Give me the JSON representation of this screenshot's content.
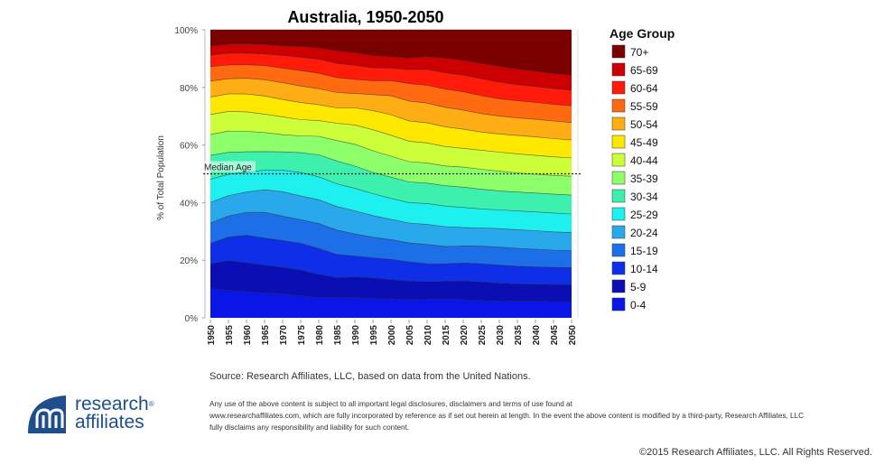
{
  "chart_data": {
    "type": "area",
    "stacked": true,
    "normalized_percent": true,
    "title": "Australia, 1950-2050",
    "ylabel": "% of Total Population",
    "xlabel": "",
    "ylim": [
      0,
      100
    ],
    "y_ticks": [
      "0%",
      "20%",
      "40%",
      "60%",
      "80%",
      "100%"
    ],
    "y_tick_values": [
      0,
      20,
      40,
      60,
      80,
      100
    ],
    "x": [
      "1950",
      "1955",
      "1960",
      "1965",
      "1970",
      "1975",
      "1980",
      "1985",
      "1990",
      "1995",
      "2000",
      "2005",
      "2010",
      "2015",
      "2020",
      "2025",
      "2030",
      "2035",
      "2040",
      "2045",
      "2050"
    ],
    "legend_title": "Age Group",
    "legend_position": "right",
    "annotation": {
      "label": "Median Age",
      "value": 50,
      "style": "dotted horizontal line"
    },
    "series": [
      {
        "name": "0-4",
        "color": "#0a16e6",
        "values": [
          10.2,
          9.8,
          9.5,
          9.2,
          8.8,
          8.0,
          7.2,
          7.1,
          7.0,
          6.7,
          6.4,
          6.3,
          6.4,
          6.5,
          6.3,
          6.0,
          5.8,
          5.7,
          5.7,
          5.6,
          5.6
        ]
      },
      {
        "name": "5-9",
        "color": "#0b0fb3",
        "values": [
          8.6,
          10.6,
          10.5,
          10.2,
          9.8,
          9.3,
          8.3,
          7.0,
          7.2,
          7.1,
          6.7,
          6.3,
          6.0,
          6.1,
          6.4,
          6.4,
          6.2,
          6.0,
          5.9,
          5.9,
          5.8
        ]
      },
      {
        "name": "10-14",
        "color": "#0f2ee8",
        "values": [
          7.0,
          8.5,
          10.0,
          10.0,
          9.9,
          9.7,
          9.2,
          8.2,
          7.2,
          7.0,
          7.0,
          6.6,
          6.2,
          6.0,
          6.2,
          6.3,
          6.3,
          6.1,
          6.0,
          5.9,
          5.9
        ]
      },
      {
        "name": "15-19",
        "color": "#1c6fe6",
        "values": [
          7.1,
          7.5,
          8.3,
          9.5,
          9.0,
          8.6,
          8.9,
          8.6,
          7.7,
          7.2,
          6.8,
          6.6,
          6.6,
          6.0,
          5.9,
          6.1,
          6.2,
          6.2,
          6.1,
          6.0,
          5.9
        ]
      },
      {
        "name": "20-24",
        "color": "#2aa8ec",
        "values": [
          7.2,
          7.3,
          7.4,
          8.3,
          9.0,
          8.6,
          8.5,
          8.3,
          8.0,
          7.5,
          7.0,
          6.8,
          6.9,
          6.8,
          6.4,
          6.3,
          6.4,
          6.4,
          6.4,
          6.3,
          6.2
        ]
      },
      {
        "name": "25-29",
        "color": "#1ef0f0",
        "values": [
          8.0,
          7.6,
          7.2,
          7.2,
          7.9,
          8.5,
          8.2,
          8.0,
          7.8,
          7.6,
          7.2,
          7.0,
          7.2,
          7.1,
          6.9,
          6.6,
          6.5,
          6.5,
          6.5,
          6.5,
          6.4
        ]
      },
      {
        "name": "30-34",
        "color": "#3ef0ad",
        "values": [
          8.3,
          7.9,
          7.4,
          6.9,
          6.8,
          7.2,
          7.8,
          8.0,
          7.7,
          7.4,
          7.3,
          7.1,
          7.0,
          7.0,
          7.0,
          6.8,
          6.6,
          6.5,
          6.5,
          6.5,
          6.5
        ]
      },
      {
        "name": "35-39",
        "color": "#8cff6a",
        "values": [
          7.2,
          7.6,
          7.4,
          7.0,
          6.3,
          6.1,
          6.6,
          7.2,
          7.6,
          7.5,
          7.2,
          7.0,
          6.9,
          6.8,
          6.9,
          6.9,
          6.8,
          6.6,
          6.5,
          6.5,
          6.5
        ]
      },
      {
        "name": "40-44",
        "color": "#ccff3a",
        "values": [
          7.0,
          7.0,
          7.1,
          6.8,
          6.6,
          5.9,
          5.6,
          6.1,
          6.7,
          7.3,
          7.2,
          7.0,
          6.9,
          6.7,
          6.5,
          6.6,
          6.6,
          6.6,
          6.5,
          6.4,
          6.3
        ]
      },
      {
        "name": "45-49",
        "color": "#ffe800",
        "values": [
          6.0,
          6.3,
          6.5,
          6.7,
          6.4,
          6.2,
          5.7,
          5.4,
          5.9,
          6.6,
          7.1,
          7.0,
          6.9,
          6.8,
          6.6,
          6.3,
          6.3,
          6.3,
          6.4,
          6.3,
          6.2
        ]
      },
      {
        "name": "50-54",
        "color": "#ffad15",
        "values": [
          5.6,
          5.4,
          5.7,
          6.0,
          6.2,
          6.0,
          5.7,
          5.4,
          5.0,
          5.6,
          6.5,
          6.8,
          6.8,
          6.7,
          6.6,
          6.4,
          6.2,
          6.1,
          6.1,
          6.1,
          6.0
        ]
      },
      {
        "name": "55-59",
        "color": "#ff6a10",
        "values": [
          5.0,
          4.9,
          4.9,
          5.2,
          5.4,
          5.6,
          5.5,
          5.3,
          4.9,
          4.8,
          5.2,
          6.0,
          6.1,
          6.3,
          6.3,
          6.2,
          6.0,
          5.9,
          5.8,
          5.8,
          5.8
        ]
      },
      {
        "name": "60-64",
        "color": "#ff1a0a",
        "values": [
          4.0,
          4.2,
          4.2,
          4.3,
          4.6,
          4.8,
          5.0,
          5.0,
          4.9,
          4.5,
          4.3,
          4.8,
          5.5,
          5.6,
          5.8,
          5.9,
          5.8,
          5.6,
          5.5,
          5.4,
          5.4
        ]
      },
      {
        "name": "65-69",
        "color": "#cc0000",
        "values": [
          3.2,
          3.3,
          3.4,
          3.5,
          3.6,
          4.0,
          4.1,
          4.4,
          4.4,
          4.3,
          4.0,
          4.0,
          4.4,
          5.0,
          5.1,
          5.3,
          5.4,
          5.4,
          5.3,
          5.2,
          5.2
        ]
      },
      {
        "name": "70+",
        "color": "#7b0000",
        "values": [
          5.6,
          5.1,
          5.1,
          5.4,
          5.9,
          6.0,
          6.4,
          7.4,
          7.9,
          8.9,
          9.2,
          9.7,
          9.2,
          9.8,
          10.5,
          11.6,
          12.7,
          13.5,
          14.3,
          15.1,
          15.6
        ]
      }
    ]
  },
  "source": "Source: Research Affiliates, LLC, based on data from the United Nations.",
  "disclaimer": {
    "line1": "Any use of the above content is subject to all important legal disclosures, disclaimers and terms of use found at",
    "line2": "www.researchaffiliates.com, which are fully incorporated by reference as if set out herein at length. In the event the above content is modified by a third-party, Research Affiliates, LLC",
    "line3": "fully disclaims any responsibility and liability for such content."
  },
  "copyright": "©2015 Research Affiliates, LLC. All Rights Reserved.",
  "logo": {
    "line1": "research",
    "line2": "affiliates",
    "mark": "®",
    "color": "#1e4f8c"
  }
}
